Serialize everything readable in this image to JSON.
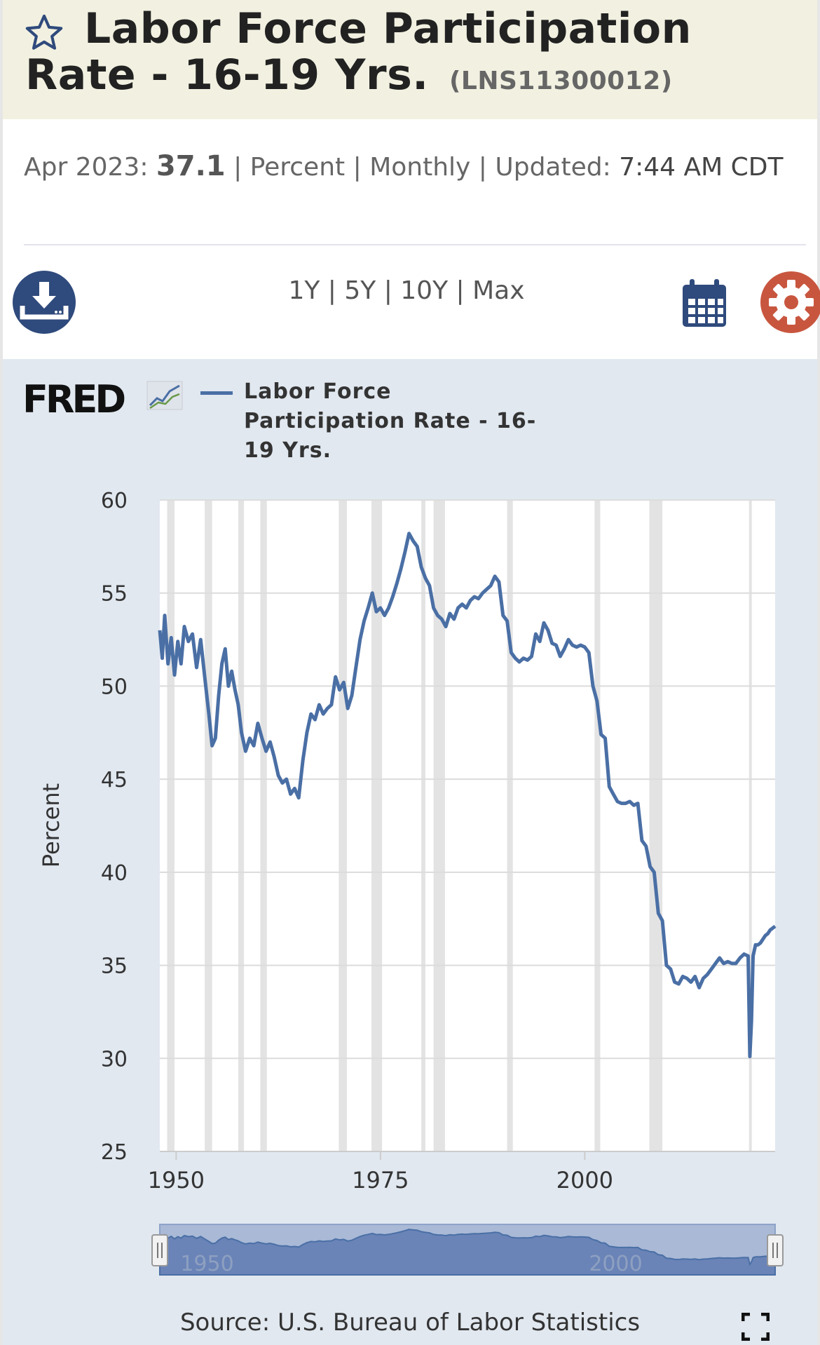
{
  "header": {
    "title": "Labor Force Participation Rate - 16-19 Yrs.",
    "series_id": "(LNS11300012)",
    "star_icon": "star-outline-icon"
  },
  "meta": {
    "date_label": "Apr 2023:",
    "latest_value": "37.1",
    "sep": "|",
    "units": "Percent",
    "frequency": "Monthly",
    "updated_label": "Updated:",
    "updated_value": "7:44 AM CDT"
  },
  "toolbar": {
    "download_icon": "download-icon",
    "ranges": [
      "1Y",
      "5Y",
      "10Y",
      "Max"
    ],
    "calendar_icon": "calendar-icon",
    "settings_icon": "gear-icon"
  },
  "legend": {
    "logo": "FRED",
    "series_name": "Labor Force Participation Rate - 16-19 Yrs."
  },
  "chart_data": {
    "type": "line",
    "ylabel": "Percent",
    "ylim": [
      25,
      60
    ],
    "yticks": [
      60,
      55,
      50,
      45,
      40,
      35,
      30,
      25
    ],
    "xlim": [
      1948,
      2023.3
    ],
    "xticks": [
      1950,
      1975,
      2000
    ],
    "grid": "horizontal",
    "line_color": "#4a6fa5",
    "recession_color": "#e3e3e3",
    "recessions": [
      [
        1948.9,
        1949.8
      ],
      [
        1953.5,
        1954.4
      ],
      [
        1957.6,
        1958.3
      ],
      [
        1960.3,
        1961.1
      ],
      [
        1969.9,
        1970.9
      ],
      [
        1973.9,
        1975.2
      ],
      [
        1980.0,
        1980.5
      ],
      [
        1981.5,
        1982.9
      ],
      [
        1990.5,
        1991.2
      ],
      [
        2001.2,
        2001.9
      ],
      [
        2007.9,
        2009.5
      ],
      [
        2020.1,
        2020.3
      ]
    ],
    "series": [
      {
        "name": "Labor Force Participation Rate - 16-19 Yrs.",
        "points": [
          [
            1948.0,
            53.0
          ],
          [
            1948.3,
            51.5
          ],
          [
            1948.6,
            53.8
          ],
          [
            1949.0,
            51.2
          ],
          [
            1949.4,
            52.6
          ],
          [
            1949.8,
            50.6
          ],
          [
            1950.2,
            52.4
          ],
          [
            1950.6,
            51.2
          ],
          [
            1951.0,
            53.2
          ],
          [
            1951.5,
            52.4
          ],
          [
            1952.0,
            52.8
          ],
          [
            1952.5,
            51.0
          ],
          [
            1953.0,
            52.5
          ],
          [
            1953.5,
            50.5
          ],
          [
            1954.0,
            48.5
          ],
          [
            1954.4,
            46.8
          ],
          [
            1954.8,
            47.2
          ],
          [
            1955.2,
            49.5
          ],
          [
            1955.6,
            51.2
          ],
          [
            1956.0,
            52.0
          ],
          [
            1956.4,
            50.0
          ],
          [
            1956.8,
            50.8
          ],
          [
            1957.2,
            49.8
          ],
          [
            1957.6,
            49.0
          ],
          [
            1958.0,
            47.5
          ],
          [
            1958.5,
            46.5
          ],
          [
            1959.0,
            47.2
          ],
          [
            1959.5,
            46.8
          ],
          [
            1960.0,
            48.0
          ],
          [
            1960.5,
            47.2
          ],
          [
            1961.0,
            46.5
          ],
          [
            1961.5,
            47.0
          ],
          [
            1962.0,
            46.2
          ],
          [
            1962.5,
            45.2
          ],
          [
            1963.0,
            44.8
          ],
          [
            1963.5,
            45.0
          ],
          [
            1964.0,
            44.2
          ],
          [
            1964.5,
            44.5
          ],
          [
            1965.0,
            44.0
          ],
          [
            1965.5,
            46.0
          ],
          [
            1966.0,
            47.5
          ],
          [
            1966.5,
            48.5
          ],
          [
            1967.0,
            48.2
          ],
          [
            1967.5,
            49.0
          ],
          [
            1968.0,
            48.5
          ],
          [
            1968.5,
            48.8
          ],
          [
            1969.0,
            49.0
          ],
          [
            1969.5,
            50.5
          ],
          [
            1970.0,
            49.8
          ],
          [
            1970.5,
            50.2
          ],
          [
            1971.0,
            48.8
          ],
          [
            1971.5,
            49.5
          ],
          [
            1972.0,
            51.0
          ],
          [
            1972.5,
            52.5
          ],
          [
            1973.0,
            53.5
          ],
          [
            1973.5,
            54.2
          ],
          [
            1974.0,
            55.0
          ],
          [
            1974.5,
            54.0
          ],
          [
            1975.0,
            54.2
          ],
          [
            1975.5,
            53.8
          ],
          [
            1976.0,
            54.2
          ],
          [
            1976.5,
            54.8
          ],
          [
            1977.0,
            55.5
          ],
          [
            1977.5,
            56.3
          ],
          [
            1978.0,
            57.2
          ],
          [
            1978.5,
            58.2
          ],
          [
            1979.0,
            57.8
          ],
          [
            1979.5,
            57.5
          ],
          [
            1980.0,
            56.4
          ],
          [
            1980.5,
            55.8
          ],
          [
            1981.0,
            55.4
          ],
          [
            1981.5,
            54.2
          ],
          [
            1982.0,
            53.8
          ],
          [
            1982.5,
            53.6
          ],
          [
            1983.0,
            53.2
          ],
          [
            1983.5,
            53.9
          ],
          [
            1984.0,
            53.6
          ],
          [
            1984.5,
            54.2
          ],
          [
            1985.0,
            54.4
          ],
          [
            1985.5,
            54.2
          ],
          [
            1986.0,
            54.6
          ],
          [
            1986.5,
            54.8
          ],
          [
            1987.0,
            54.7
          ],
          [
            1987.5,
            55.0
          ],
          [
            1988.0,
            55.2
          ],
          [
            1988.5,
            55.4
          ],
          [
            1989.0,
            55.9
          ],
          [
            1989.5,
            55.6
          ],
          [
            1990.0,
            53.8
          ],
          [
            1990.5,
            53.5
          ],
          [
            1991.0,
            51.8
          ],
          [
            1991.5,
            51.5
          ],
          [
            1992.0,
            51.3
          ],
          [
            1992.5,
            51.5
          ],
          [
            1993.0,
            51.4
          ],
          [
            1993.5,
            51.6
          ],
          [
            1994.0,
            52.8
          ],
          [
            1994.5,
            52.4
          ],
          [
            1995.0,
            53.4
          ],
          [
            1995.5,
            53.0
          ],
          [
            1996.0,
            52.3
          ],
          [
            1996.5,
            52.2
          ],
          [
            1997.0,
            51.6
          ],
          [
            1997.5,
            52.0
          ],
          [
            1998.0,
            52.5
          ],
          [
            1998.5,
            52.2
          ],
          [
            1999.0,
            52.1
          ],
          [
            1999.5,
            52.2
          ],
          [
            2000.0,
            52.1
          ],
          [
            2000.5,
            51.8
          ],
          [
            2001.0,
            50.0
          ],
          [
            2001.5,
            49.2
          ],
          [
            2002.0,
            47.4
          ],
          [
            2002.5,
            47.2
          ],
          [
            2003.0,
            44.6
          ],
          [
            2003.5,
            44.2
          ],
          [
            2004.0,
            43.8
          ],
          [
            2004.5,
            43.7
          ],
          [
            2005.0,
            43.7
          ],
          [
            2005.5,
            43.8
          ],
          [
            2006.0,
            43.6
          ],
          [
            2006.5,
            43.7
          ],
          [
            2007.0,
            41.7
          ],
          [
            2007.5,
            41.4
          ],
          [
            2008.0,
            40.3
          ],
          [
            2008.5,
            40.0
          ],
          [
            2009.0,
            37.8
          ],
          [
            2009.5,
            37.4
          ],
          [
            2010.0,
            35.0
          ],
          [
            2010.5,
            34.8
          ],
          [
            2011.0,
            34.1
          ],
          [
            2011.5,
            34.0
          ],
          [
            2012.0,
            34.4
          ],
          [
            2012.5,
            34.3
          ],
          [
            2013.0,
            34.1
          ],
          [
            2013.5,
            34.4
          ],
          [
            2014.0,
            33.8
          ],
          [
            2014.5,
            34.3
          ],
          [
            2015.0,
            34.5
          ],
          [
            2015.5,
            34.8
          ],
          [
            2016.0,
            35.1
          ],
          [
            2016.5,
            35.4
          ],
          [
            2017.0,
            35.1
          ],
          [
            2017.5,
            35.2
          ],
          [
            2018.0,
            35.1
          ],
          [
            2018.5,
            35.1
          ],
          [
            2019.0,
            35.4
          ],
          [
            2019.5,
            35.6
          ],
          [
            2020.0,
            35.5
          ],
          [
            2020.2,
            30.1
          ],
          [
            2020.4,
            32.0
          ],
          [
            2020.6,
            35.5
          ],
          [
            2020.9,
            36.1
          ],
          [
            2021.2,
            36.1
          ],
          [
            2021.5,
            36.2
          ],
          [
            2021.8,
            36.4
          ],
          [
            2022.1,
            36.6
          ],
          [
            2022.4,
            36.7
          ],
          [
            2022.7,
            36.9
          ],
          [
            2023.0,
            37.0
          ],
          [
            2023.3,
            37.1
          ]
        ]
      }
    ],
    "navigator_ticks": [
      1950,
      2000
    ]
  },
  "footer": {
    "source": "Source: U.S. Bureau of Labor Statistics",
    "fullscreen_icon": "fullscreen-icon"
  }
}
